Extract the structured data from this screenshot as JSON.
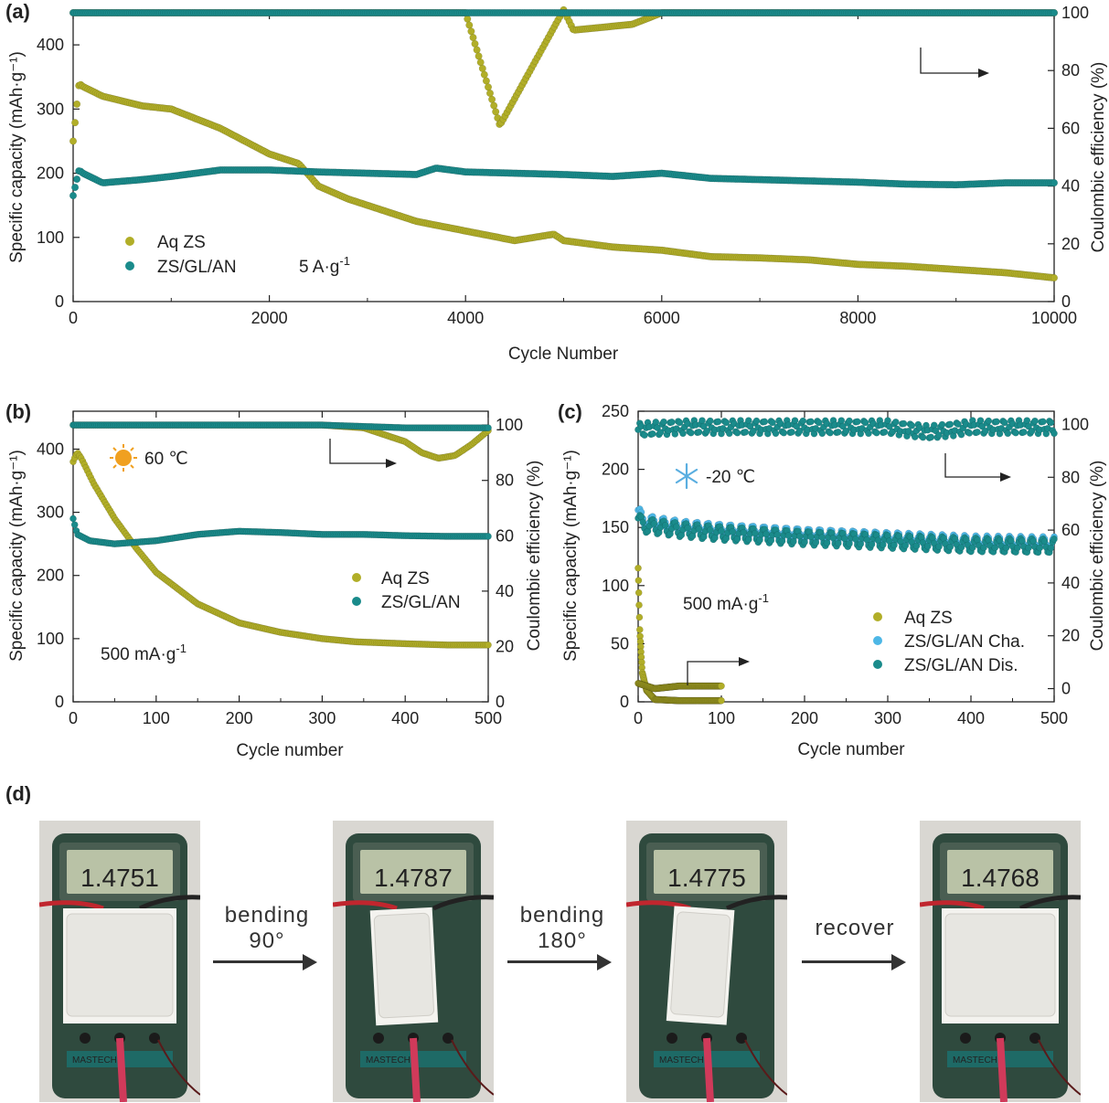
{
  "panel_labels": {
    "a": "(a)",
    "b": "(b)",
    "c": "(c)",
    "d": "(d)"
  },
  "colors": {
    "aq": "#b1ae28",
    "zs": "#1a8b8b",
    "zs_cha": "#4db7e6",
    "zs_dis": "#1a8b8b",
    "axis": "#222222"
  },
  "panel_a": {
    "ylabel_left": "Specific capacity (mAh·g⁻¹)",
    "ylabel_right": "Coulombic efficiency (%)",
    "xlabel": "Cycle Number",
    "current_label": "5 A·g",
    "current_sup": "-1",
    "x_ticks": [
      "0",
      "2000",
      "4000",
      "6000",
      "8000",
      "10000"
    ],
    "y_ticks": [
      "0",
      "100",
      "200",
      "300",
      "400"
    ],
    "y2_ticks": [
      "0",
      "20",
      "40",
      "60",
      "80",
      "100"
    ],
    "legend": [
      "Aq ZS",
      "ZS/GL/AN"
    ]
  },
  "panel_b": {
    "ylabel_left": "Specific capacity (mAh·g⁻¹)",
    "ylabel_right": "Coulombic efficiency (%)",
    "xlabel": "Cycle number",
    "temperature": "60 ℃",
    "current_label": "500 mA·g",
    "current_sup": "-1",
    "x_ticks": [
      "0",
      "100",
      "200",
      "300",
      "400",
      "500"
    ],
    "y_ticks": [
      "0",
      "100",
      "200",
      "300",
      "400"
    ],
    "y2_ticks": [
      "0",
      "20",
      "40",
      "60",
      "80",
      "100"
    ],
    "legend": [
      "Aq ZS",
      "ZS/GL/AN"
    ]
  },
  "panel_c": {
    "ylabel_left": "Specific capacity (mAh·g⁻¹)",
    "ylabel_right": "Coulombic efficiency (%)",
    "xlabel": "Cycle number",
    "temperature": "-20 ℃",
    "current_label": "500 mA·g",
    "current_sup": "-1",
    "x_ticks": [
      "0",
      "100",
      "200",
      "300",
      "400",
      "500"
    ],
    "y_ticks": [
      "0",
      "50",
      "100",
      "150",
      "200",
      "250"
    ],
    "y2_ticks": [
      "0",
      "20",
      "40",
      "60",
      "80",
      "100"
    ],
    "legend": [
      "Aq ZS",
      "ZS/GL/AN Cha.",
      "ZS/GL/AN Dis."
    ]
  },
  "panel_d": {
    "readings": [
      "1.4751",
      "1.4787",
      "1.4775",
      "1.4768"
    ],
    "steps": [
      {
        "line1": "bending",
        "line2": "90°"
      },
      {
        "line1": "bending",
        "line2": "180°"
      },
      {
        "line1": "recover",
        "line2": ""
      }
    ],
    "meter_brand": "MASTECH"
  },
  "chart_data": [
    {
      "type": "scatter",
      "panel": "a",
      "xlabel": "Cycle Number",
      "ylabel": "Specific capacity (mAh·g⁻¹)",
      "y2label": "Coulombic efficiency (%)",
      "xlim": [
        0,
        10000
      ],
      "ylim": [
        0,
        450
      ],
      "y2lim": [
        0,
        100
      ],
      "series": [
        {
          "name": "Aq ZS",
          "axis": "capacity",
          "x": [
            0,
            60,
            100,
            300,
            700,
            1000,
            1500,
            2000,
            2300,
            2500,
            2800,
            3000,
            3500,
            4000,
            4500,
            4900,
            5000,
            5500,
            6000,
            6500,
            7000,
            7500,
            8000,
            8500,
            9000,
            9500,
            10000
          ],
          "y": [
            250,
            340,
            335,
            320,
            305,
            300,
            270,
            230,
            215,
            180,
            160,
            150,
            125,
            110,
            95,
            105,
            95,
            85,
            80,
            70,
            68,
            65,
            58,
            55,
            50,
            45,
            37
          ]
        },
        {
          "name": "ZS/GL/AN",
          "axis": "capacity",
          "x": [
            0,
            60,
            100,
            300,
            700,
            1000,
            1500,
            2000,
            2500,
            3000,
            3500,
            3700,
            4000,
            4500,
            5000,
            5500,
            6000,
            6500,
            7000,
            7500,
            8000,
            8500,
            9000,
            9500,
            10000
          ],
          "y": [
            165,
            205,
            200,
            185,
            190,
            195,
            205,
            205,
            202,
            200,
            198,
            208,
            202,
            200,
            198,
            195,
            200,
            192,
            190,
            188,
            186,
            183,
            182,
            185,
            185
          ]
        },
        {
          "name": "Aq ZS CE",
          "axis": "ce",
          "x": [
            0,
            500,
            1000,
            2000,
            3000,
            4000,
            4350,
            5000,
            5100,
            5700,
            6000,
            8000,
            10000
          ],
          "y": [
            100,
            100,
            100,
            100,
            100,
            100,
            61,
            101,
            94,
            96,
            100,
            100,
            100
          ]
        },
        {
          "name": "ZS/GL/AN CE",
          "axis": "ce",
          "x": [
            0,
            2000,
            4000,
            6000,
            8000,
            10000
          ],
          "y": [
            100,
            100,
            100,
            100,
            100,
            100
          ]
        }
      ]
    },
    {
      "type": "scatter",
      "panel": "b",
      "xlabel": "Cycle number",
      "ylabel": "Specific capacity (mAh·g⁻¹)",
      "y2label": "Coulombic efficiency (%)",
      "xlim": [
        0,
        500
      ],
      "ylim": [
        0,
        460
      ],
      "y2lim": [
        0,
        105
      ],
      "series": [
        {
          "name": "Aq ZS",
          "axis": "capacity",
          "x": [
            0,
            5,
            10,
            25,
            50,
            75,
            100,
            150,
            200,
            250,
            300,
            340,
            400,
            450,
            500
          ],
          "y": [
            380,
            395,
            385,
            345,
            290,
            245,
            205,
            155,
            125,
            110,
            100,
            95,
            92,
            90,
            90
          ]
        },
        {
          "name": "ZS/GL/AN",
          "axis": "capacity",
          "x": [
            0,
            5,
            20,
            50,
            100,
            150,
            200,
            250,
            300,
            350,
            400,
            450,
            500
          ],
          "y": [
            290,
            265,
            255,
            250,
            255,
            265,
            270,
            268,
            265,
            265,
            263,
            262,
            262
          ]
        },
        {
          "name": "Aq ZS CE",
          "axis": "ce",
          "x": [
            0,
            100,
            200,
            300,
            350,
            380,
            400,
            420,
            440,
            460,
            480,
            500
          ],
          "y": [
            100,
            100,
            100,
            100,
            99,
            96,
            94,
            90,
            88,
            89,
            93,
            98
          ]
        },
        {
          "name": "ZS/GL/AN CE",
          "axis": "ce",
          "x": [
            0,
            100,
            200,
            300,
            400,
            500
          ],
          "y": [
            100,
            100,
            100,
            100,
            99,
            99
          ]
        }
      ]
    },
    {
      "type": "scatter",
      "panel": "c",
      "xlabel": "Cycle number",
      "ylabel": "Specific capacity (mAh·g⁻¹)",
      "y2label": "Coulombic efficiency (%)",
      "xlim": [
        0,
        500
      ],
      "ylim": [
        0,
        250
      ],
      "y2lim": [
        -5,
        105
      ],
      "series": [
        {
          "name": "Aq ZS",
          "axis": "capacity",
          "x": [
            0,
            2,
            5,
            10,
            20,
            50,
            100
          ],
          "y": [
            115,
            60,
            25,
            10,
            2,
            1,
            1
          ]
        },
        {
          "name": "ZS/GL/AN Cha.",
          "axis": "capacity",
          "x": [
            0,
            5,
            50,
            100,
            200,
            300,
            400,
            500
          ],
          "y": [
            165,
            155,
            150,
            147,
            143,
            140,
            137,
            136
          ]
        },
        {
          "name": "ZS/GL/AN Dis.",
          "axis": "capacity",
          "x": [
            0,
            5,
            50,
            100,
            200,
            300,
            400,
            500
          ],
          "y": [
            158,
            152,
            148,
            145,
            141,
            138,
            135,
            134
          ]
        },
        {
          "name": "Aq ZS CE",
          "axis": "ce",
          "x": [
            0,
            20,
            50,
            100
          ],
          "y": [
            2,
            0,
            1,
            1
          ]
        },
        {
          "name": "ZS/GL/AN CE",
          "axis": "ce",
          "x": [
            0,
            50,
            100,
            200,
            300,
            350,
            400,
            500
          ],
          "y": [
            98,
            99,
            99,
            99,
            99,
            97,
            99,
            99
          ]
        }
      ]
    }
  ]
}
